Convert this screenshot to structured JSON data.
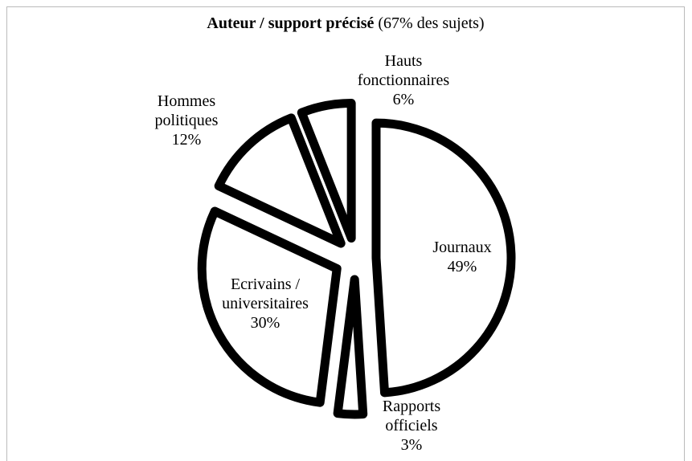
{
  "chart_data": {
    "type": "pie",
    "title": "Auteur / support précisé",
    "title_note": "(67% des sujets)",
    "categories": [
      "Journaux",
      "Rapports officiels",
      "Ecrivains / universitaires",
      "Hommes politiques",
      "Hauts fonctionnaires"
    ],
    "values": [
      49,
      3,
      30,
      12,
      6
    ],
    "value_labels": [
      "49%",
      "3%",
      "30%",
      "12%",
      "6%"
    ],
    "color": "#ffffff",
    "edge_color": "#000000"
  }
}
